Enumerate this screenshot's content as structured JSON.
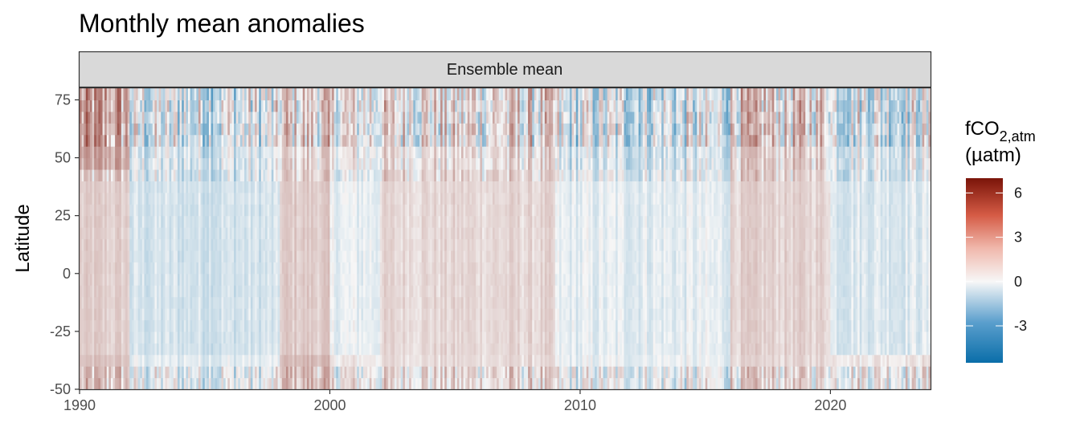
{
  "chart_data": {
    "type": "heatmap",
    "title": "Monthly mean anomalies",
    "facet_label": "Ensemble mean",
    "xlabel": "",
    "ylabel": "Latitude",
    "xlim": [
      1990,
      2024
    ],
    "ylim": [
      -50,
      80
    ],
    "x_ticks": [
      1990,
      2000,
      2010,
      2020
    ],
    "x_tick_labels": [
      "1990",
      "2000",
      "2010",
      "2020"
    ],
    "y_ticks": [
      -50,
      -25,
      0,
      25,
      50,
      75
    ],
    "y_tick_labels": [
      "-50",
      "-25",
      "0",
      "25",
      "50",
      "75"
    ],
    "legend": {
      "title_main": "fCO",
      "title_sub": "2,atm",
      "title_unit": "(µatm)",
      "range": [
        -5.5,
        7.0
      ],
      "ticks": [
        6,
        3,
        0,
        -3
      ],
      "tick_labels": [
        "6",
        "3",
        "0",
        "-3"
      ],
      "placement": "right"
    },
    "colorscale": {
      "low": "#0a6ea9",
      "mid": "#f7f7f7",
      "high": "#7a1409"
    },
    "grid": false,
    "period_profiles": [
      {
        "period": [
          1990,
          1992
        ],
        "anomaly_tropics": 0.9,
        "anomaly_north": 2.0,
        "anomaly_south": 1.2
      },
      {
        "period": [
          1992,
          1998
        ],
        "anomaly_tropics": -0.6,
        "anomaly_north": -0.5,
        "anomaly_south": -0.3
      },
      {
        "period": [
          1998,
          2000
        ],
        "anomaly_tropics": 1.0,
        "anomaly_north": 0.8,
        "anomaly_south": 1.5
      },
      {
        "period": [
          2000,
          2002
        ],
        "anomaly_tropics": -0.2,
        "anomaly_north": 0.2,
        "anomaly_south": 0.3
      },
      {
        "period": [
          2002,
          2009
        ],
        "anomaly_tropics": 0.7,
        "anomaly_north": 0.5,
        "anomaly_south": 0.6
      },
      {
        "period": [
          2009,
          2016
        ],
        "anomaly_tropics": -0.3,
        "anomaly_north": -0.6,
        "anomaly_south": -0.2
      },
      {
        "period": [
          2016,
          2020
        ],
        "anomaly_tropics": 0.8,
        "anomaly_north": 0.9,
        "anomaly_south": 0.7
      },
      {
        "period": [
          2020,
          2024
        ],
        "anomaly_tropics": -0.4,
        "anomaly_north": -0.3,
        "anomaly_south": 0.4
      }
    ]
  }
}
